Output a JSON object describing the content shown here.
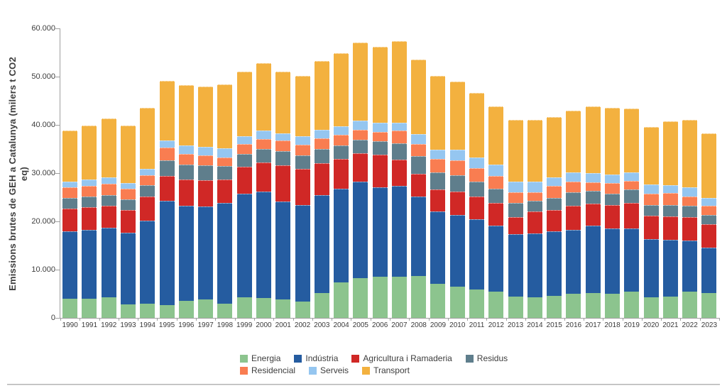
{
  "chart_data": {
    "type": "bar",
    "stacked": true,
    "title": "",
    "ylabel_line1": "Emissions brutes de GEH a Catalunya (milers t CO2",
    "ylabel_line2": "eq)",
    "ylabel_full": "Emissions brutes de GEH a Catalunya (milers t CO2 eq)",
    "unit": "milers t CO2 eq",
    "grid": false,
    "legend_position": "bottom",
    "y_axis": {
      "min": 0,
      "max": 60000,
      "tick_interval": 10000,
      "tick_labels": [
        "60.000",
        "50.000",
        "40.000",
        "30.000",
        "20.000",
        "10.000",
        "0"
      ]
    },
    "categories": [
      1990,
      1991,
      1992,
      1993,
      1994,
      1995,
      1996,
      1997,
      1998,
      1999,
      2000,
      2001,
      2002,
      2003,
      2004,
      2005,
      2006,
      2007,
      2008,
      2009,
      2010,
      2011,
      2012,
      2013,
      2014,
      2015,
      2016,
      2017,
      2018,
      2019,
      2020,
      2021,
      2022,
      2023
    ],
    "series": [
      {
        "name": "Energia",
        "color": "#8CC48E",
        "values": [
          3900,
          4000,
          4200,
          2800,
          3000,
          2700,
          3500,
          3800,
          3000,
          4200,
          4100,
          3800,
          3400,
          5200,
          7300,
          8200,
          8500,
          8500,
          8700,
          7000,
          6500,
          5900,
          5400,
          4400,
          4200,
          4600,
          5000,
          5200,
          5000,
          5400,
          4300,
          4400,
          5500,
          5100
        ]
      },
      {
        "name": "Indústria",
        "color": "#255CA0",
        "values": [
          14000,
          14200,
          14500,
          14800,
          17200,
          21500,
          19800,
          19300,
          20900,
          21500,
          22100,
          20300,
          20000,
          20300,
          19400,
          20000,
          18500,
          18900,
          16400,
          15000,
          14900,
          14500,
          13700,
          12900,
          13300,
          13400,
          13300,
          13900,
          13600,
          13200,
          12000,
          11800,
          10500,
          9500
        ]
      },
      {
        "name": "Agricultura i Ramaderia",
        "color": "#D02826",
        "values": [
          4800,
          4700,
          4600,
          4700,
          4900,
          5200,
          5400,
          5400,
          4800,
          5600,
          6000,
          7500,
          7500,
          6600,
          6300,
          5900,
          6900,
          5400,
          4800,
          4600,
          4800,
          4700,
          4800,
          3600,
          4500,
          4400,
          4900,
          4600,
          4800,
          5300,
          4900,
          4800,
          4900,
          4800
        ]
      },
      {
        "name": "Residus",
        "color": "#5F7E8C",
        "values": [
          2200,
          2200,
          2200,
          2200,
          2400,
          3200,
          3000,
          3100,
          2800,
          2700,
          2800,
          2900,
          2800,
          2900,
          2800,
          2800,
          2700,
          3400,
          3700,
          3500,
          3300,
          3200,
          2800,
          3000,
          2200,
          2400,
          2800,
          2600,
          2400,
          2700,
          2200,
          2400,
          2300,
          2000
        ]
      },
      {
        "name": "Residencial",
        "color": "#F97D51",
        "values": [
          2100,
          2200,
          2300,
          2200,
          2100,
          2700,
          2300,
          2100,
          1800,
          2000,
          2100,
          2300,
          2200,
          2200,
          2200,
          2100,
          2000,
          2600,
          2500,
          2900,
          3200,
          2700,
          2700,
          2200,
          1900,
          2500,
          2200,
          1800,
          2100,
          1800,
          2400,
          2500,
          1900,
          1800
        ]
      },
      {
        "name": "Serveis",
        "color": "#95C6F0",
        "values": [
          1300,
          1400,
          1300,
          1200,
          1300,
          1400,
          1700,
          1700,
          1800,
          1700,
          1700,
          1500,
          1800,
          1800,
          1700,
          1900,
          1800,
          1700,
          2000,
          1900,
          2100,
          2200,
          2300,
          2200,
          2200,
          1900,
          2000,
          1900,
          1800,
          1800,
          1900,
          1600,
          1900,
          1600
        ]
      },
      {
        "name": "Transport",
        "color": "#F3B13F",
        "values": [
          10500,
          11100,
          12300,
          11900,
          12700,
          12400,
          12500,
          12500,
          13300,
          13300,
          14000,
          12700,
          12400,
          14200,
          15200,
          16100,
          15800,
          16900,
          15400,
          15200,
          14200,
          13400,
          12100,
          12700,
          12800,
          12400,
          12800,
          13900,
          13900,
          13200,
          11800,
          13200,
          14000,
          13500
        ]
      }
    ],
    "legend_rows": [
      [
        "Energia",
        "Indústria",
        "Agricultura i Ramaderia",
        "Residus"
      ],
      [
        "Residencial",
        "Serveis",
        "Transport"
      ]
    ]
  }
}
